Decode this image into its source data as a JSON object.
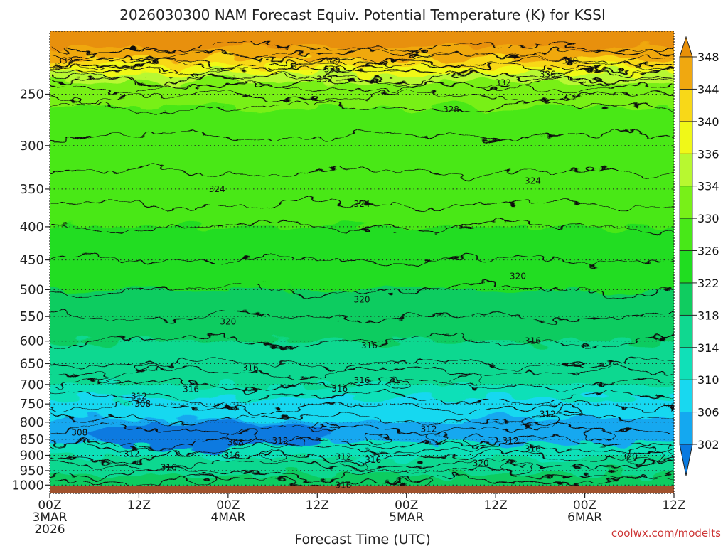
{
  "chart_data": {
    "type": "heatmap",
    "title": "2026030300 NAM Forecast Equiv. Potential Temperature (K) for KSSI",
    "xlabel": "Forecast Time (UTC)",
    "ylabel": "",
    "credit": "coolwx.com/modelts",
    "y_scale": "log-pressure",
    "y_ticks": [
      "250",
      "300",
      "350",
      "400",
      "450",
      "500",
      "550",
      "600",
      "650",
      "700",
      "750",
      "800",
      "850",
      "900",
      "950",
      "1000"
    ],
    "x_ticks": [
      {
        "hours": 0,
        "line1": "00Z",
        "line2": "3MAR",
        "line3": "2026"
      },
      {
        "hours": 12,
        "line1": "12Z",
        "line2": "",
        "line3": ""
      },
      {
        "hours": 24,
        "line1": "00Z",
        "line2": "4MAR",
        "line3": ""
      },
      {
        "hours": 36,
        "line1": "12Z",
        "line2": "",
        "line3": ""
      },
      {
        "hours": 48,
        "line1": "00Z",
        "line2": "5MAR",
        "line3": ""
      },
      {
        "hours": 60,
        "line1": "12Z",
        "line2": "",
        "line3": ""
      },
      {
        "hours": 72,
        "line1": "00Z",
        "line2": "6MAR",
        "line3": ""
      },
      {
        "hours": 84,
        "line1": "12Z",
        "line2": "",
        "line3": ""
      }
    ],
    "xlim_hours": [
      0,
      84
    ],
    "ylim_hpa": [
      1030,
      200
    ],
    "grid": "dotted horizontal at y ticks",
    "colorbar": {
      "levels": [
        302,
        306,
        310,
        314,
        318,
        322,
        326,
        330,
        334,
        336,
        340,
        344,
        348
      ],
      "colors": [
        "#0a7ae0",
        "#14a8f0",
        "#18d8f0",
        "#10e0b8",
        "#10d890",
        "#10cc60",
        "#20dd20",
        "#48e818",
        "#78f018",
        "#b8f830",
        "#f0f818",
        "#f8d818",
        "#f0a810",
        "#e89008"
      ],
      "placement": "right"
    },
    "contour_labels": [
      {
        "value": "332",
        "hours": 2.0,
        "hpa": 222
      },
      {
        "value": "340",
        "hours": 38.0,
        "hpa": 222
      },
      {
        "value": "336",
        "hours": 38.0,
        "hpa": 229
      },
      {
        "value": "332",
        "hours": 37.0,
        "hpa": 237
      },
      {
        "value": "340",
        "hours": 70.0,
        "hpa": 222
      },
      {
        "value": "336",
        "hours": 67.0,
        "hpa": 233
      },
      {
        "value": "332",
        "hours": 61.0,
        "hpa": 240
      },
      {
        "value": "328",
        "hours": 54.0,
        "hpa": 264
      },
      {
        "value": "324",
        "hours": 22.5,
        "hpa": 350
      },
      {
        "value": "324",
        "hours": 42.0,
        "hpa": 369
      },
      {
        "value": "324",
        "hours": 65.0,
        "hpa": 340
      },
      {
        "value": "320",
        "hours": 63.0,
        "hpa": 477
      },
      {
        "value": "320",
        "hours": 42.0,
        "hpa": 518
      },
      {
        "value": "320",
        "hours": 24.0,
        "hpa": 560
      },
      {
        "value": "316",
        "hours": 43.0,
        "hpa": 610
      },
      {
        "value": "316",
        "hours": 65.0,
        "hpa": 600
      },
      {
        "value": "316",
        "hours": 27.0,
        "hpa": 660
      },
      {
        "value": "316",
        "hours": 42.0,
        "hpa": 690
      },
      {
        "value": "316",
        "hours": 19.0,
        "hpa": 712
      },
      {
        "value": "316",
        "hours": 39.0,
        "hpa": 711
      },
      {
        "value": "312",
        "hours": 12.0,
        "hpa": 730
      },
      {
        "value": "308",
        "hours": 12.5,
        "hpa": 750
      },
      {
        "value": "308",
        "hours": 4.0,
        "hpa": 830
      },
      {
        "value": "308",
        "hours": 25.0,
        "hpa": 860
      },
      {
        "value": "312",
        "hours": 31.0,
        "hpa": 855
      },
      {
        "value": "312",
        "hours": 51.0,
        "hpa": 820
      },
      {
        "value": "312",
        "hours": 67.0,
        "hpa": 778
      },
      {
        "value": "312",
        "hours": 62.0,
        "hpa": 855
      },
      {
        "value": "316",
        "hours": 65.0,
        "hpa": 880
      },
      {
        "value": "312",
        "hours": 11.0,
        "hpa": 895
      },
      {
        "value": "316",
        "hours": 24.5,
        "hpa": 900
      },
      {
        "value": "312",
        "hours": 39.5,
        "hpa": 905
      },
      {
        "value": "316",
        "hours": 43.5,
        "hpa": 915
      },
      {
        "value": "316",
        "hours": 16.0,
        "hpa": 940
      },
      {
        "value": "320",
        "hours": 58.0,
        "hpa": 925
      },
      {
        "value": "320",
        "hours": 78.0,
        "hpa": 905
      },
      {
        "value": "316",
        "hours": 39.5,
        "hpa": 1000
      }
    ]
  }
}
